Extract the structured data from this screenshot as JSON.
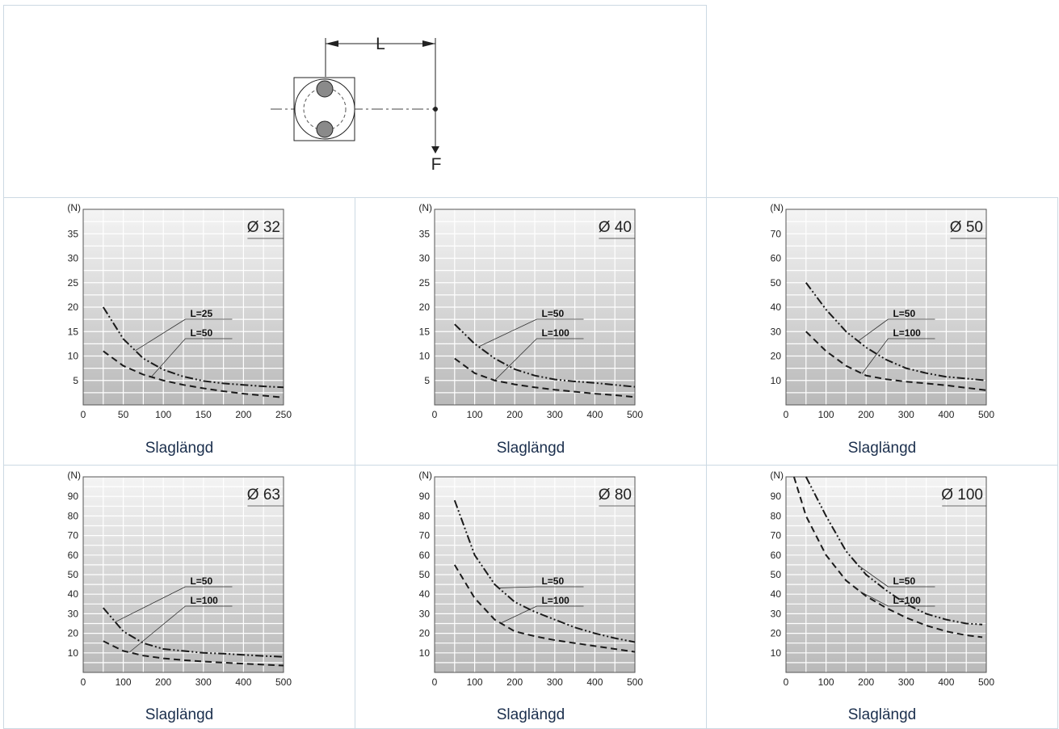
{
  "diagram": {
    "dimension_label": "L",
    "force_label": "F"
  },
  "charts": [
    {
      "type": "line",
      "y_unit": "(N)",
      "diameter_label": "Ø 32",
      "xlabel": "Slaglängd",
      "x_ticks": [
        0,
        50,
        100,
        150,
        200,
        250
      ],
      "y_ticks": [
        5,
        10,
        15,
        20,
        25,
        30,
        35
      ],
      "xlim": [
        0,
        250
      ],
      "ylim": [
        0,
        40
      ],
      "series": [
        {
          "name": "L=25",
          "style": "dashdotdot",
          "x": [
            25,
            50,
            75,
            100,
            125,
            150,
            175,
            200,
            225,
            250
          ],
          "y": [
            20,
            13.5,
            9.5,
            7.2,
            5.8,
            4.9,
            4.4,
            4.1,
            3.8,
            3.6
          ]
        },
        {
          "name": "L=50",
          "style": "dash",
          "x": [
            25,
            50,
            75,
            100,
            125,
            150,
            175,
            200,
            225,
            250
          ],
          "y": [
            11,
            8,
            6.2,
            5,
            4.1,
            3.4,
            2.8,
            2.3,
            1.9,
            1.5
          ]
        }
      ],
      "labels": [
        {
          "text": "L=25",
          "series": "L=25",
          "at_x": 65
        },
        {
          "text": "L=50",
          "series": "L=50",
          "at_x": 85
        }
      ]
    },
    {
      "type": "line",
      "y_unit": "(N)",
      "diameter_label": "Ø 40",
      "xlabel": "Slaglängd",
      "x_ticks": [
        0,
        100,
        200,
        300,
        400,
        500
      ],
      "y_ticks": [
        5,
        10,
        15,
        20,
        25,
        30,
        35
      ],
      "xlim": [
        0,
        500
      ],
      "ylim": [
        0,
        40
      ],
      "series": [
        {
          "name": "L=50",
          "style": "dashdotdot",
          "x": [
            50,
            100,
            150,
            200,
            250,
            300,
            350,
            400,
            450,
            500
          ],
          "y": [
            16.5,
            12.5,
            9.5,
            7.3,
            6,
            5.2,
            4.8,
            4.5,
            4.1,
            3.7
          ]
        },
        {
          "name": "L=100",
          "style": "dash",
          "x": [
            50,
            100,
            150,
            200,
            250,
            300,
            350,
            400,
            450,
            500
          ],
          "y": [
            9.5,
            6.5,
            5,
            4.2,
            3.6,
            3.1,
            2.7,
            2.3,
            2,
            1.6
          ]
        }
      ],
      "labels": [
        {
          "text": "L=50",
          "series": "L=50",
          "at_x": 110
        },
        {
          "text": "L=100",
          "series": "L=100",
          "at_x": 150
        }
      ]
    },
    {
      "type": "line",
      "y_unit": "(N)",
      "diameter_label": "Ø 50",
      "xlabel": "Slaglängd",
      "x_ticks": [
        0,
        100,
        200,
        300,
        400,
        500
      ],
      "y_ticks": [
        10,
        20,
        30,
        40,
        50,
        60,
        70
      ],
      "xlim": [
        0,
        500
      ],
      "ylim": [
        0,
        80
      ],
      "series": [
        {
          "name": "L=50",
          "style": "dashdotdot",
          "x": [
            50,
            100,
            150,
            200,
            250,
            300,
            350,
            400,
            450,
            500
          ],
          "y": [
            50,
            39,
            30,
            23.5,
            18.5,
            15,
            13,
            11.5,
            10.8,
            10
          ]
        },
        {
          "name": "L=100",
          "style": "dash",
          "x": [
            50,
            100,
            150,
            200,
            250,
            300,
            350,
            400,
            450,
            500
          ],
          "y": [
            30,
            22,
            16,
            12,
            10.5,
            9.5,
            8.8,
            8,
            7,
            6
          ]
        }
      ],
      "labels": [
        {
          "text": "L=50",
          "series": "L=50",
          "at_x": 180
        },
        {
          "text": "L=100",
          "series": "L=100",
          "at_x": 190
        }
      ]
    },
    {
      "type": "line",
      "y_unit": "(N)",
      "diameter_label": "Ø 63",
      "xlabel": "Slaglängd",
      "x_ticks": [
        0,
        100,
        200,
        300,
        400,
        500
      ],
      "y_ticks": [
        10,
        20,
        30,
        40,
        50,
        60,
        70,
        80,
        90
      ],
      "xlim": [
        0,
        500
      ],
      "ylim": [
        0,
        100
      ],
      "series": [
        {
          "name": "L=50",
          "style": "dashdotdot",
          "x": [
            50,
            100,
            150,
            200,
            250,
            300,
            350,
            400,
            450,
            500
          ],
          "y": [
            33,
            21,
            15,
            12,
            11,
            10,
            9.6,
            9,
            8.4,
            8
          ]
        },
        {
          "name": "L=100",
          "style": "dash",
          "x": [
            50,
            100,
            150,
            200,
            250,
            300,
            350,
            400,
            450,
            500
          ],
          "y": [
            16,
            11,
            8.6,
            7.2,
            6.3,
            5.6,
            5,
            4.5,
            4,
            3.5
          ]
        }
      ],
      "labels": [
        {
          "text": "L=50",
          "series": "L=50",
          "at_x": 80
        },
        {
          "text": "L=100",
          "series": "L=100",
          "at_x": 115
        }
      ]
    },
    {
      "type": "line",
      "y_unit": "(N)",
      "diameter_label": "Ø 80",
      "xlabel": "Slaglängd",
      "x_ticks": [
        0,
        100,
        200,
        300,
        400,
        500
      ],
      "y_ticks": [
        10,
        20,
        30,
        40,
        50,
        60,
        70,
        80,
        90
      ],
      "xlim": [
        0,
        500
      ],
      "ylim": [
        0,
        100
      ],
      "series": [
        {
          "name": "L=50",
          "style": "dashdotdot",
          "x": [
            50,
            100,
            150,
            200,
            250,
            300,
            350,
            400,
            450,
            500
          ],
          "y": [
            88,
            60,
            45,
            36,
            31,
            27,
            23,
            20,
            17.5,
            15.5
          ]
        },
        {
          "name": "L=100",
          "style": "dash",
          "x": [
            50,
            100,
            150,
            200,
            250,
            300,
            350,
            400,
            450,
            500
          ],
          "y": [
            55,
            38,
            27,
            21,
            18.5,
            16.5,
            15,
            13.5,
            12,
            10.5
          ]
        }
      ],
      "labels": [
        {
          "text": "L=50",
          "series": "L=50",
          "at_x": 160
        },
        {
          "text": "L=100",
          "series": "L=100",
          "at_x": 165
        }
      ]
    },
    {
      "type": "line",
      "y_unit": "(N)",
      "diameter_label": "Ø 100",
      "xlabel": "Slaglängd",
      "x_ticks": [
        0,
        100,
        200,
        300,
        400,
        500
      ],
      "y_ticks": [
        10,
        20,
        30,
        40,
        50,
        60,
        70,
        80,
        90
      ],
      "xlim": [
        0,
        500
      ],
      "ylim": [
        0,
        100
      ],
      "series": [
        {
          "name": "L=50",
          "style": "dashdotdot",
          "x": [
            50,
            100,
            150,
            200,
            250,
            300,
            350,
            400,
            450,
            490
          ],
          "y": [
            100,
            80,
            62,
            50,
            42,
            35,
            30,
            27,
            25,
            24.5
          ]
        },
        {
          "name": "L=100",
          "style": "dash",
          "x": [
            20,
            50,
            100,
            150,
            200,
            250,
            300,
            350,
            400,
            450,
            490
          ],
          "y": [
            100,
            80,
            60,
            47,
            39,
            33,
            28,
            24,
            21,
            19,
            18
          ]
        }
      ],
      "labels": [
        {
          "text": "L=50",
          "series": "L=50",
          "at_x": 180
        },
        {
          "text": "L=100",
          "series": "L=100",
          "at_x": 185
        }
      ]
    }
  ]
}
